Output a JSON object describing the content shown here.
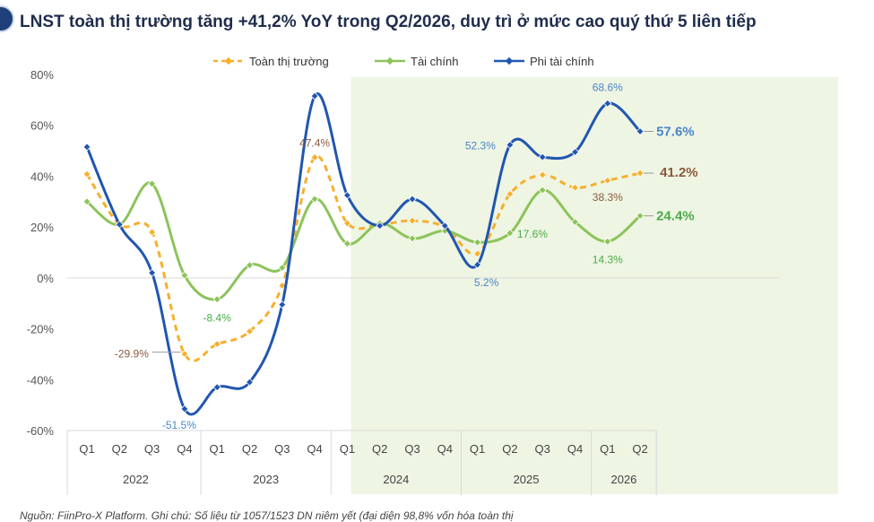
{
  "header": {
    "title": "LNST toàn thị trường tăng +41,2% YoY trong Q2/2026, duy trì ở mức cao quý thứ 5 liên tiếp"
  },
  "footer": {
    "source": "Nguồn: FiinPro-X Platform. Ghi chú: Số liệu từ 1057/1523 DN niêm yết (đại diện 98,8% vốn hóa toàn thị"
  },
  "chart_data": {
    "type": "line",
    "title": "LNST toàn thị trường tăng +41,2% YoY trong Q2/2026, duy trì ở mức cao quý thứ 5 liên tiếp",
    "xlabel": "",
    "ylabel": "",
    "ylim": [
      -60,
      80
    ],
    "yticks": [
      80,
      60,
      40,
      20,
      0,
      -20,
      -40,
      -60
    ],
    "y_tick_suffix": "%",
    "grid": false,
    "legend_position": "top-center",
    "categories": [
      "Q1",
      "Q2",
      "Q3",
      "Q4",
      "Q1",
      "Q2",
      "Q3",
      "Q4",
      "Q1",
      "Q2",
      "Q3",
      "Q4",
      "Q1",
      "Q2",
      "Q3",
      "Q4",
      "Q1",
      "Q2"
    ],
    "year_groups": [
      {
        "label": "2022",
        "quarters": 4
      },
      {
        "label": "2023",
        "quarters": 4
      },
      {
        "label": "2024",
        "quarters": 4
      },
      {
        "label": "2025",
        "quarters": 4
      },
      {
        "label": "2026",
        "quarters": 2
      }
    ],
    "highlight_range": {
      "from_index": 9,
      "to_index": 17,
      "color": "#eef5e3"
    },
    "series": [
      {
        "name": "Toàn thị trường",
        "color": "#f5b02e",
        "label_color": "#8a5a3c",
        "dashed": true,
        "values": [
          40.8,
          21.0,
          18.0,
          -29.9,
          -26.0,
          -21.0,
          -3.0,
          47.4,
          21.5,
          21.0,
          22.5,
          20.0,
          9.5,
          33.0,
          40.5,
          35.5,
          38.3,
          41.2
        ],
        "labels": [
          {
            "index": 3,
            "text": "-29.9%"
          },
          {
            "index": 7,
            "text": "47.4%"
          },
          {
            "index": 16,
            "text": "38.3%"
          },
          {
            "index": 17,
            "text": "41.2%"
          }
        ]
      },
      {
        "name": "Tài chính",
        "color": "#8cc35a",
        "label_color": "#4cab4a",
        "dashed": false,
        "values": [
          30.0,
          21.0,
          37.0,
          1.0,
          -8.4,
          5.0,
          4.0,
          31.0,
          13.5,
          21.5,
          15.5,
          18.5,
          14.0,
          17.6,
          34.5,
          22.0,
          14.3,
          24.4
        ],
        "labels": [
          {
            "index": 4,
            "text": "-8.4%"
          },
          {
            "index": 13,
            "text": "17.6%"
          },
          {
            "index": 16,
            "text": "14.3%"
          },
          {
            "index": 17,
            "text": "24.4%"
          }
        ]
      },
      {
        "name": "Phi tài chính",
        "color": "#2156b0",
        "label_color": "#4a86c8",
        "dashed": false,
        "values": [
          51.5,
          21.0,
          2.0,
          -51.5,
          -43.0,
          -41.0,
          -10.5,
          71.5,
          32.5,
          20.5,
          31.0,
          20.5,
          5.2,
          52.3,
          47.5,
          49.5,
          68.6,
          57.6
        ],
        "labels": [
          {
            "index": 3,
            "text": "-51.5%"
          },
          {
            "index": 12,
            "text": "5.2%"
          },
          {
            "index": 13,
            "text": "52.3%"
          },
          {
            "index": 16,
            "text": "68.6%"
          },
          {
            "index": 17,
            "text": "57.6%"
          }
        ]
      }
    ]
  }
}
